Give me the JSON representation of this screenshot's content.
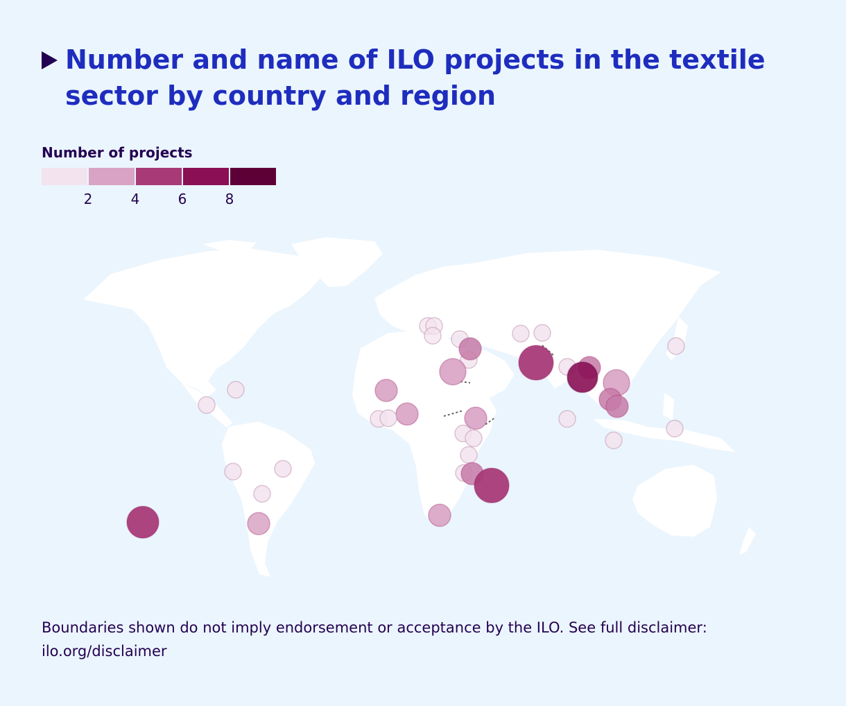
{
  "title": "Number and name of ILO projects in the textile sector by country and region",
  "legend": {
    "title": "Number of projects",
    "colors": [
      "#f3e3ee",
      "#d8a3c4",
      "#a83a78",
      "#8a0f55",
      "#5e0038"
    ],
    "ticks": [
      "2",
      "4",
      "6",
      "8"
    ]
  },
  "colors": {
    "background": "#ebf5fd",
    "land": "#ffffff",
    "title": "#1e2dbe",
    "text": "#230050",
    "bubble_low": "#f3e3ee",
    "bubble_high": "#8a0f55"
  },
  "footnote": "Boundaries shown do not imply endorsement or acceptance by the ILO. See full disclaimer: ilo.org/disclaimer"
}
